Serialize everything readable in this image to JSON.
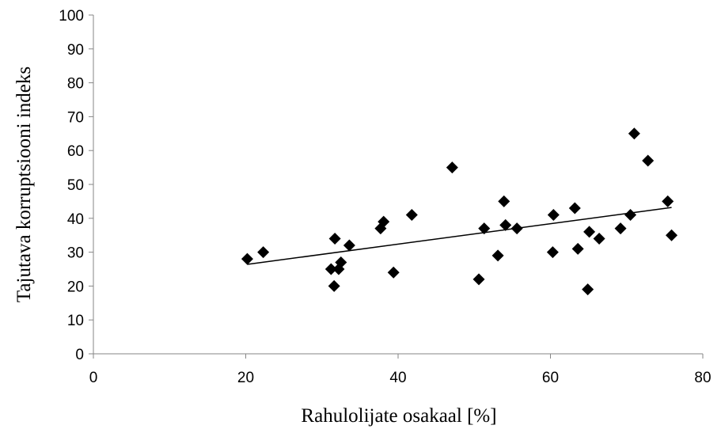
{
  "chart_data": {
    "type": "scatter",
    "title": "",
    "xlabel": "Rahulolijate osakaal [%]",
    "ylabel": "Tajutava korruptsiooni indeks",
    "xlim": [
      0,
      80
    ],
    "ylim": [
      0,
      100
    ],
    "x_ticks": [
      "0",
      "20",
      "40",
      "60",
      "80"
    ],
    "y_ticks": [
      "0",
      "10",
      "20",
      "30",
      "40",
      "50",
      "60",
      "70",
      "80",
      "90",
      "100"
    ],
    "grid": false,
    "legend": "none",
    "marker": "diamond",
    "marker_color": "#000000",
    "points": [
      {
        "x": 20.2,
        "y": 28
      },
      {
        "x": 22.3,
        "y": 30
      },
      {
        "x": 31.2,
        "y": 25
      },
      {
        "x": 31.6,
        "y": 20
      },
      {
        "x": 31.7,
        "y": 34
      },
      {
        "x": 32.2,
        "y": 25
      },
      {
        "x": 32.5,
        "y": 27
      },
      {
        "x": 33.6,
        "y": 32
      },
      {
        "x": 37.7,
        "y": 37
      },
      {
        "x": 38.1,
        "y": 39
      },
      {
        "x": 39.4,
        "y": 24
      },
      {
        "x": 41.8,
        "y": 41
      },
      {
        "x": 47.1,
        "y": 55
      },
      {
        "x": 50.6,
        "y": 22
      },
      {
        "x": 51.3,
        "y": 37
      },
      {
        "x": 53.1,
        "y": 29
      },
      {
        "x": 53.9,
        "y": 45
      },
      {
        "x": 54.1,
        "y": 38
      },
      {
        "x": 55.6,
        "y": 37
      },
      {
        "x": 60.3,
        "y": 30
      },
      {
        "x": 60.4,
        "y": 41
      },
      {
        "x": 63.2,
        "y": 43
      },
      {
        "x": 63.6,
        "y": 31
      },
      {
        "x": 64.9,
        "y": 19
      },
      {
        "x": 65.1,
        "y": 36
      },
      {
        "x": 66.4,
        "y": 34
      },
      {
        "x": 69.2,
        "y": 37
      },
      {
        "x": 70.5,
        "y": 41
      },
      {
        "x": 71.0,
        "y": 65
      },
      {
        "x": 72.8,
        "y": 57
      },
      {
        "x": 75.4,
        "y": 45
      },
      {
        "x": 75.9,
        "y": 35
      }
    ],
    "trendline": {
      "type": "linear",
      "x": [
        20.2,
        75.9
      ],
      "y": [
        26.4,
        43.2
      ],
      "color": "#000000"
    }
  }
}
